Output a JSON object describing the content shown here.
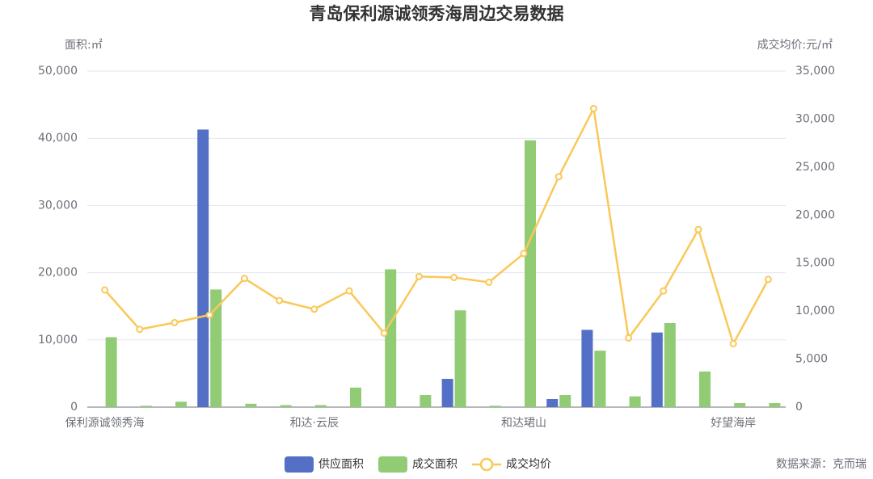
{
  "chart_data": {
    "type": "bar-line",
    "title": "青岛保利源诚领秀海周边交易数据",
    "y_label": "面积:㎡",
    "y2_label": "成交均价:元/㎡",
    "source": "数据来源：克而瑞",
    "categories": [
      "保利源诚领秀海",
      null,
      null,
      null,
      null,
      null,
      "和达·云辰",
      null,
      null,
      null,
      null,
      null,
      "和达珺山",
      null,
      null,
      null,
      null,
      null,
      "好望海岸",
      null
    ],
    "ylim": [
      0,
      50000
    ],
    "yticks": [
      0,
      {
        "value": 10000,
        "label": "10,000"
      },
      {
        "value": 20000,
        "label": "20,000"
      },
      {
        "value": 30000,
        "label": "30,000"
      },
      {
        "value": 40000,
        "label": "40,000"
      },
      {
        "value": 50000,
        "label": "50,000"
      }
    ],
    "y2lim": [
      0,
      35000
    ],
    "y2ticks": [
      0,
      {
        "value": 5000,
        "label": "5,000"
      },
      {
        "value": 10000,
        "label": "10,000"
      },
      {
        "value": 15000,
        "label": "15,000"
      },
      {
        "value": 20000,
        "label": "20,000"
      },
      {
        "value": 25000,
        "label": "25,000"
      },
      {
        "value": 30000,
        "label": "30,000"
      },
      {
        "value": 35000,
        "label": "35,000"
      }
    ],
    "grid": true,
    "legend": "bottom",
    "series": [
      {
        "name": "供应面积",
        "type": "bar",
        "color": "#5470c6",
        "values": [
          0,
          0,
          0,
          41300,
          0,
          0,
          0,
          0,
          0,
          0,
          4200,
          0,
          0,
          1200,
          11500,
          0,
          11100,
          0,
          0,
          0
        ]
      },
      {
        "name": "成交面积",
        "type": "bar",
        "color": "#91cc75",
        "values": [
          10400,
          200,
          800,
          17500,
          500,
          300,
          300,
          2900,
          20500,
          1800,
          14400,
          200,
          39700,
          1800,
          8400,
          1600,
          12500,
          5300,
          600,
          600
        ]
      },
      {
        "name": "成交均价",
        "type": "line",
        "axis": "y2",
        "color": "#fac858",
        "values": [
          12200,
          8100,
          8800,
          9600,
          13400,
          11100,
          10200,
          12100,
          7700,
          13600,
          13500,
          13000,
          16000,
          24000,
          31100,
          7200,
          12100,
          18500,
          6600,
          13300
        ]
      }
    ]
  }
}
